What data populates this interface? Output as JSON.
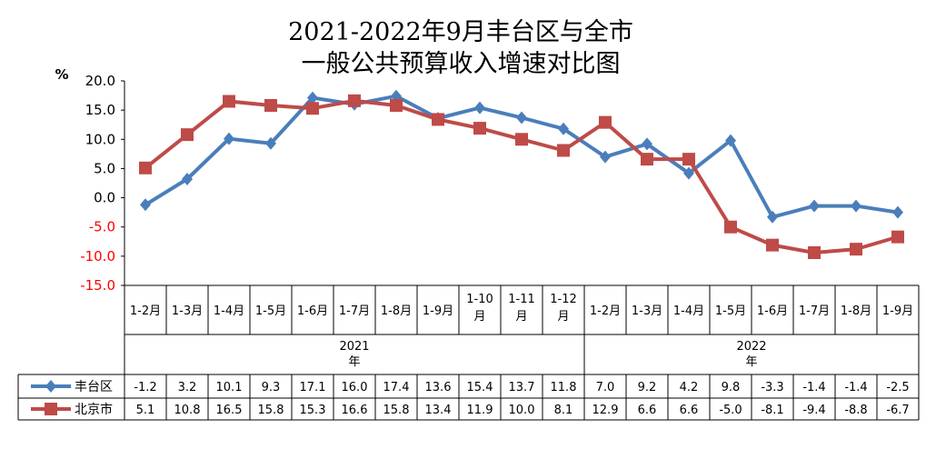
{
  "chart_data": {
    "type": "line",
    "title_line1": "2021-2022年9月丰台区与全市",
    "title_line2": "一般公共预算收入增速对比图",
    "ylabel": "%",
    "ylim": [
      -15,
      20
    ],
    "yticks": [
      "20.0",
      "15.0",
      "10.0",
      "5.0",
      "0.0",
      "-5.0",
      "-10.0",
      "-15.0"
    ],
    "grid": false,
    "legend": "data-table",
    "categories": [
      [
        "1-2月"
      ],
      [
        "1-3月"
      ],
      [
        "1-4月"
      ],
      [
        "1-5月"
      ],
      [
        "1-6月"
      ],
      [
        "1-7月"
      ],
      [
        "1-8月"
      ],
      [
        "1-9月"
      ],
      [
        "1-10",
        "月"
      ],
      [
        "1-11",
        "月"
      ],
      [
        "1-12",
        "月"
      ],
      [
        "1-2月"
      ],
      [
        "1-3月"
      ],
      [
        "1-4月"
      ],
      [
        "1-5月"
      ],
      [
        "1-6月"
      ],
      [
        "1-7月"
      ],
      [
        "1-8月"
      ],
      [
        "1-9月"
      ]
    ],
    "year_groups": [
      {
        "label": [
          "2021",
          "年"
        ],
        "count": 11
      },
      {
        "label": [
          "2022",
          "年"
        ],
        "count": 8
      }
    ],
    "series": [
      {
        "name": "丰台区",
        "color": "#4A7EBB",
        "marker": "diamond",
        "values": [
          -1.2,
          3.2,
          10.1,
          9.3,
          17.1,
          16.0,
          17.4,
          13.6,
          15.4,
          13.7,
          11.8,
          7.0,
          9.2,
          4.2,
          9.8,
          -3.3,
          -1.4,
          -1.4,
          -2.5
        ],
        "labels": [
          "-1.2",
          "3.2",
          "10.1",
          "9.3",
          "17.1",
          "16.0",
          "17.4",
          "13.6",
          "15.4",
          "13.7",
          "11.8",
          "7.0",
          "9.2",
          "4.2",
          "9.8",
          "-3.3",
          "-1.4",
          "-1.4",
          "-2.5"
        ]
      },
      {
        "name": "北京市",
        "color": "#BE4B48",
        "marker": "square",
        "values": [
          5.1,
          10.8,
          16.5,
          15.8,
          15.3,
          16.6,
          15.8,
          13.4,
          11.9,
          10.0,
          8.1,
          12.9,
          6.6,
          6.6,
          -5.0,
          -8.1,
          -9.4,
          -8.8,
          -6.7
        ],
        "labels": [
          "5.1",
          "10.8",
          "16.5",
          "15.8",
          "15.3",
          "16.6",
          "15.8",
          "13.4",
          "11.9",
          "10.0",
          "8.1",
          "12.9",
          "6.6",
          "6.6",
          "-5.0",
          "-8.1",
          "-9.4",
          "-8.8",
          "-6.7"
        ]
      }
    ],
    "colors": {
      "positive_axis": "#000000",
      "negative_axis": "#FF0000"
    }
  }
}
